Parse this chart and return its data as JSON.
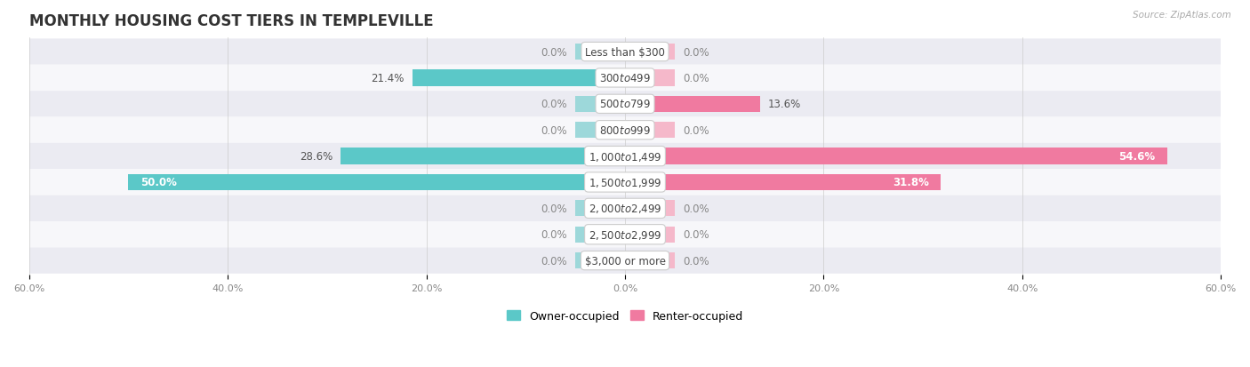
{
  "title": "MONTHLY HOUSING COST TIERS IN TEMPLEVILLE",
  "source": "Source: ZipAtlas.com",
  "categories": [
    "Less than $300",
    "$300 to $499",
    "$500 to $799",
    "$800 to $999",
    "$1,000 to $1,499",
    "$1,500 to $1,999",
    "$2,000 to $2,499",
    "$2,500 to $2,999",
    "$3,000 or more"
  ],
  "owner_values": [
    0.0,
    21.4,
    0.0,
    0.0,
    28.6,
    50.0,
    0.0,
    0.0,
    0.0
  ],
  "renter_values": [
    0.0,
    0.0,
    13.6,
    0.0,
    54.6,
    31.8,
    0.0,
    0.0,
    0.0
  ],
  "owner_color": "#5bc8c8",
  "renter_color": "#f07aa0",
  "owner_color_light": "#9dd8da",
  "renter_color_light": "#f5b8ca",
  "bg_row_even": "#ebebf2",
  "bg_row_odd": "#f7f7fa",
  "axis_limit": 60.0,
  "title_fontsize": 12,
  "label_fontsize": 8.5,
  "category_fontsize": 8.5,
  "bar_height": 0.62,
  "small_bar_width": 5.0
}
